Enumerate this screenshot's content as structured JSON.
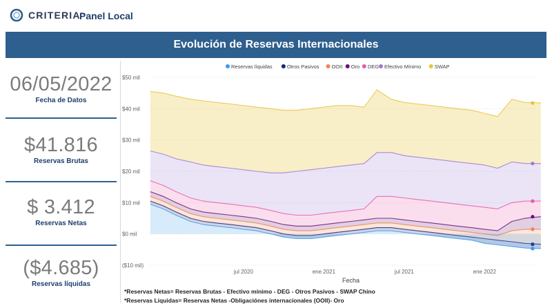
{
  "header": {
    "logo_text": "CRITERIA",
    "logo_mark": "™",
    "logo_icon": "criteria-ring-icon",
    "panel_label": "Panel Local"
  },
  "banner": {
    "title": "Evolución de Reservas Internacionales"
  },
  "kpis": [
    {
      "value": "06/05/2022",
      "label": "Fecha de Datos"
    },
    {
      "value": "$41.816",
      "label": "Reservas Brutas"
    },
    {
      "value": "$ 3.412",
      "label": "Reservas Netas"
    },
    {
      "value": "($4.685)",
      "label": "Reservas líquidas"
    }
  ],
  "footnotes": {
    "line1": "*Reservas Netas= Reservas Brutas - Efectivo mínimo - DEG - Otros Pasivos - SWAP Chino",
    "line2": "*Reservas Liquidas= Reservas Netas -Obligaciónes internacionales (OOII)- Oro"
  },
  "colors": {
    "banner": "#2e5f8e",
    "swap": "#e6c43a",
    "efectivo_minimo": "#9c79d2",
    "deg": "#e85aa8",
    "oro": "#6a1173",
    "ooii": "#f0834f",
    "otros_pasivos": "#1c2577",
    "reservas_liquidas": "#3e9ae8"
  },
  "chart_data": {
    "type": "area",
    "title": "",
    "xlabel": "Fecha",
    "ylabel": "",
    "ylim": [
      -10,
      50
    ],
    "xlim": [
      "2019-12",
      "2022-05"
    ],
    "y_ticks": [
      {
        "value": 50,
        "label": "$50 mil"
      },
      {
        "value": 40,
        "label": "$40 mil"
      },
      {
        "value": 30,
        "label": "$30 mil"
      },
      {
        "value": 20,
        "label": "$20 mil"
      },
      {
        "value": 10,
        "label": "$10 mil"
      },
      {
        "value": 0,
        "label": "$0 mil"
      },
      {
        "value": -10,
        "label": "($10 mil)"
      }
    ],
    "x_ticks": [
      {
        "value": 2020.5,
        "label": "jul 2020"
      },
      {
        "value": 2021.0,
        "label": "ene 2021"
      },
      {
        "value": 2021.5,
        "label": "jul 2021"
      },
      {
        "value": 2022.0,
        "label": "ene 2022"
      }
    ],
    "legend_position": "top",
    "x": [
      2019.92,
      2020.0,
      2020.08,
      2020.17,
      2020.25,
      2020.33,
      2020.42,
      2020.5,
      2020.58,
      2020.67,
      2020.75,
      2020.83,
      2020.92,
      2021.0,
      2021.08,
      2021.17,
      2021.25,
      2021.33,
      2021.42,
      2021.5,
      2021.58,
      2021.67,
      2021.75,
      2021.83,
      2021.92,
      2022.0,
      2022.08,
      2022.17,
      2022.25,
      2022.35
    ],
    "series": [
      {
        "name": "Reservas líquidas",
        "color": "#3e9ae8",
        "values": [
          9.5,
          8,
          6,
          4,
          3,
          2.5,
          2,
          1.5,
          1,
          0,
          -1,
          -1.5,
          -1.5,
          -1,
          -0.5,
          0,
          0.5,
          1,
          1,
          0.5,
          0,
          -0.5,
          -1,
          -1.5,
          -2,
          -3,
          -3.5,
          -4,
          -4.5,
          -4.685
        ]
      },
      {
        "name": "Otros Pasivos",
        "color": "#1c2577",
        "values": [
          10.5,
          9,
          7,
          5,
          4,
          3.5,
          3,
          2.5,
          2,
          1,
          0,
          -0.5,
          -0.5,
          0,
          0.5,
          1,
          1.5,
          2,
          2,
          1.5,
          1,
          0.5,
          0,
          -0.5,
          -1,
          -1.5,
          -2,
          -2.5,
          -3,
          -3.3
        ]
      },
      {
        "name": "OOII",
        "color": "#f0834f",
        "values": [
          12,
          10.5,
          8.5,
          6.5,
          5.5,
          5,
          4.5,
          4,
          3.5,
          2.5,
          1.5,
          1,
          1,
          1.5,
          2,
          2.5,
          3,
          3.5,
          3.5,
          3,
          2.5,
          2,
          1.5,
          1,
          0.5,
          0,
          -0.5,
          1,
          1.5,
          1.5
        ]
      },
      {
        "name": "Oro",
        "color": "#6a1173",
        "values": [
          13.5,
          12,
          10,
          8,
          7,
          6.5,
          6,
          5.5,
          5,
          4,
          3,
          2.5,
          2.5,
          3,
          3.5,
          4,
          4.5,
          5,
          5,
          4.5,
          4,
          3.5,
          3,
          2.5,
          2,
          1.5,
          1,
          4,
          5,
          5.5
        ]
      },
      {
        "name": "DEG",
        "color": "#e85aa8",
        "values": [
          17,
          15.5,
          13.5,
          11.5,
          10.5,
          10,
          9.5,
          9,
          8.5,
          7.5,
          6.5,
          6,
          6,
          6.5,
          7,
          7.5,
          8,
          12,
          12,
          11.5,
          11,
          10.5,
          10,
          9.5,
          9,
          8.5,
          8,
          10,
          10.5,
          10.5
        ]
      },
      {
        "name": "Efectivo Mínimo",
        "color": "#9c79d2",
        "values": [
          26.5,
          25.5,
          24,
          23,
          22,
          21.5,
          21,
          20.5,
          20,
          19.5,
          19.5,
          20,
          20.5,
          21,
          21.5,
          22,
          22.5,
          26,
          26,
          25,
          24.5,
          24,
          23.5,
          23,
          22.5,
          22,
          21,
          23,
          22.5,
          22.5
        ]
      },
      {
        "name": "SWAP",
        "color": "#e6c43a",
        "values": [
          45.5,
          45,
          44,
          43,
          42.5,
          42,
          41.5,
          41,
          40.5,
          40,
          39.5,
          39.5,
          40,
          40.5,
          41,
          41,
          40.5,
          46,
          43,
          42,
          41.5,
          41,
          40.5,
          40,
          39.5,
          38.5,
          37.5,
          43,
          42,
          41.816
        ]
      }
    ]
  }
}
